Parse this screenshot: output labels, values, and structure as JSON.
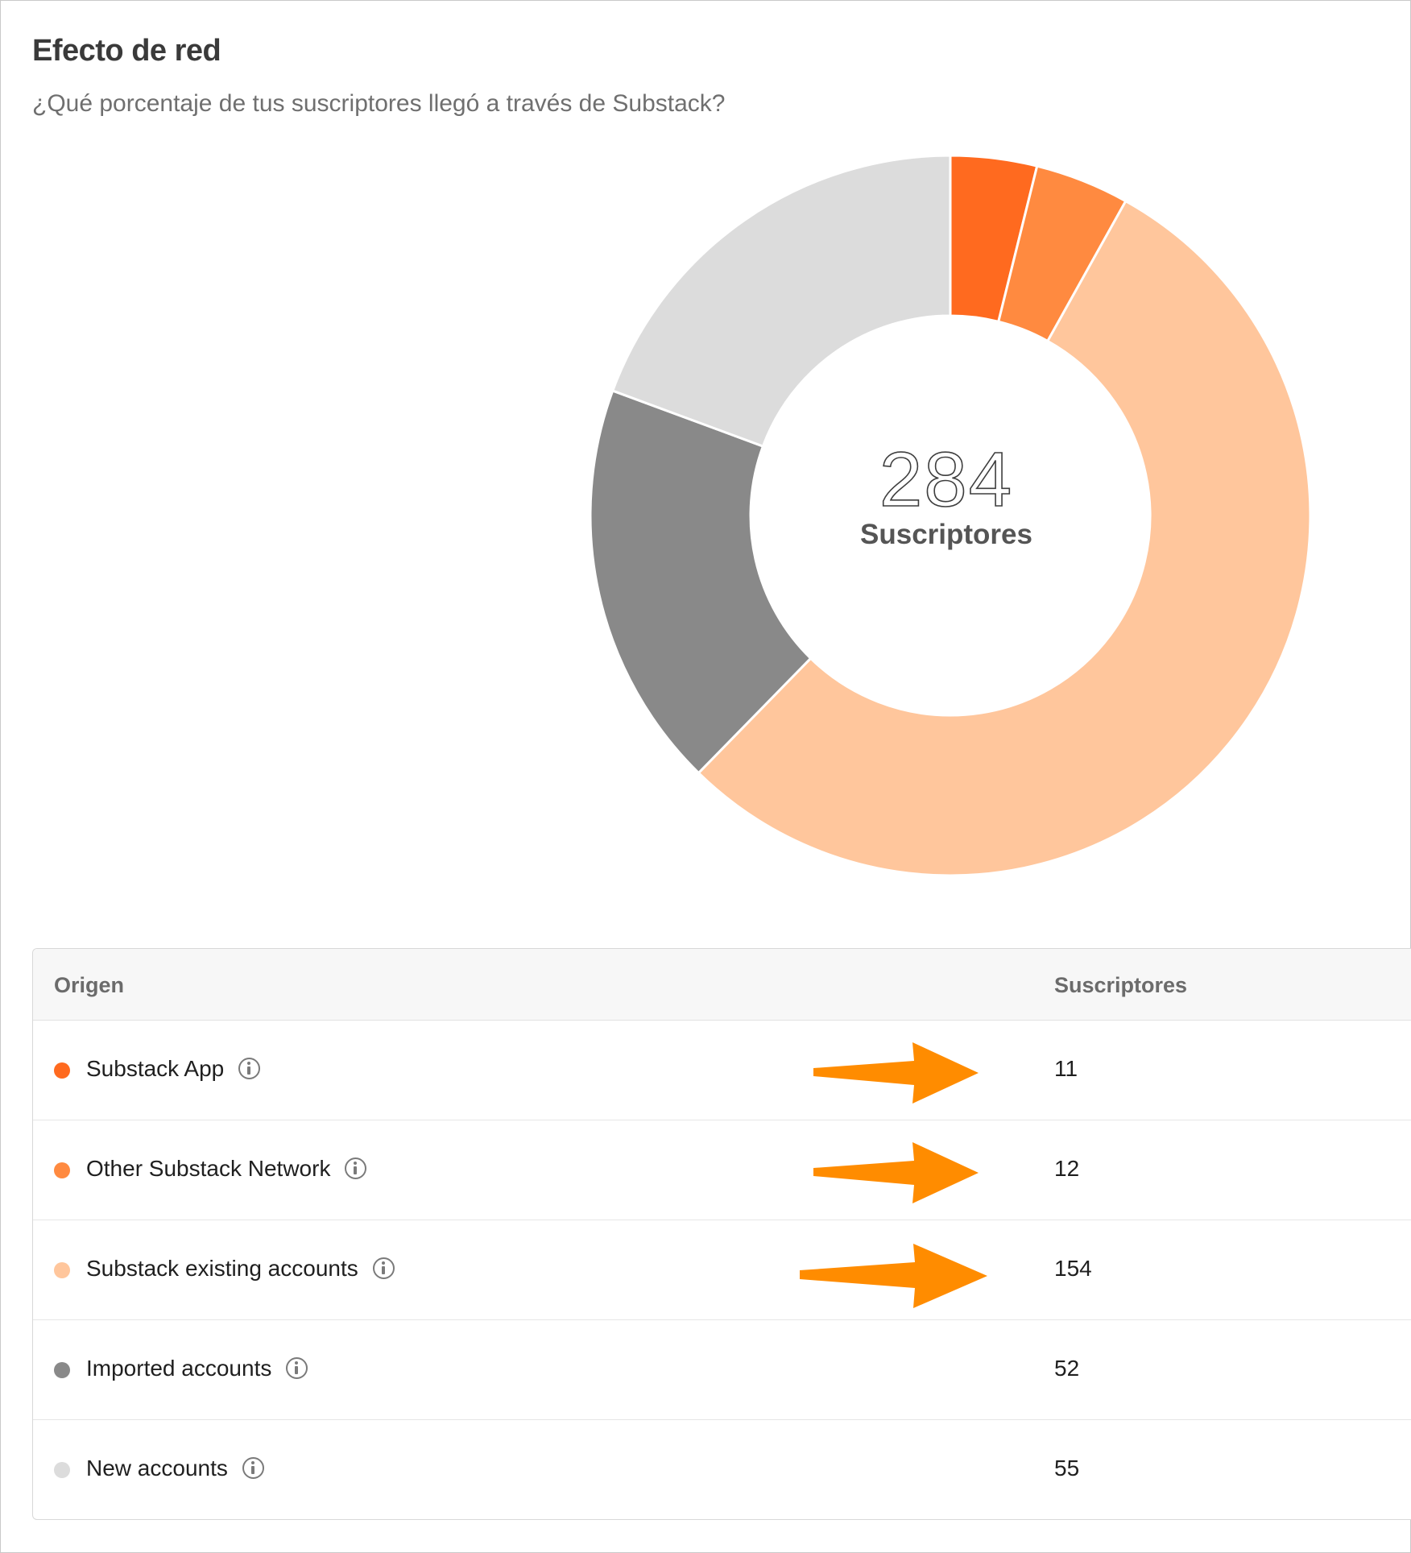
{
  "header": {
    "title": "Efecto de red",
    "subtitle": "¿Qué porcentaje de tus suscriptores llegó a través de Substack?"
  },
  "chart_data": {
    "type": "pie",
    "total": 284,
    "center_label": "Suscriptores",
    "categories": [
      "Substack App",
      "Other Substack Network",
      "Substack existing accounts",
      "Imported accounts",
      "New accounts"
    ],
    "values": [
      11,
      12,
      154,
      52,
      55
    ],
    "colors": [
      "#ff6a1f",
      "#ff8a40",
      "#ffc69c",
      "#898989",
      "#dcdcdc"
    ]
  },
  "table": {
    "col_origin": "Origen",
    "col_subscribers": "Suscriptores",
    "info_icon": "info-circle-icon",
    "rows": [
      {
        "label": "Substack App",
        "value": "11",
        "color": "#ff6a1f",
        "highlighted": true
      },
      {
        "label": "Other Substack Network",
        "value": "12",
        "color": "#ff8a40",
        "highlighted": true
      },
      {
        "label": "Substack existing accounts",
        "value": "154",
        "color": "#ffc69c",
        "highlighted": true
      },
      {
        "label": "Imported accounts",
        "value": "52",
        "color": "#898989",
        "highlighted": false
      },
      {
        "label": "New accounts",
        "value": "55",
        "color": "#dcdcdc",
        "highlighted": false
      }
    ]
  },
  "annotation_color": "#ff8c00"
}
